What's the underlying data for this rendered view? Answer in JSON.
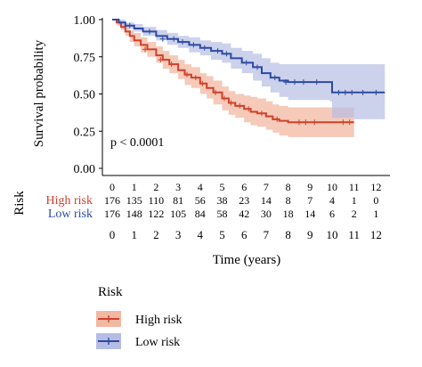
{
  "chart_data": {
    "type": "line",
    "subtype": "kaplan-meier",
    "ylabel": "Survival probability",
    "xlabel": "Time (years)",
    "xlim": [
      0,
      12.4
    ],
    "ylim": [
      0,
      1.0
    ],
    "x_ticks": [
      "0",
      "1",
      "2",
      "3",
      "4",
      "5",
      "6",
      "7",
      "8",
      "9",
      "10",
      "11",
      "12"
    ],
    "y_ticks": [
      "0.00",
      "0.25",
      "0.50",
      "0.75",
      "1.00"
    ],
    "annotation": "p < 0.0001",
    "grid": false,
    "legend": {
      "title": "Risk",
      "placement": "bottom",
      "entries": [
        "High risk",
        "Low risk"
      ]
    },
    "series": [
      {
        "name": "High risk",
        "color": "#d0402a",
        "fill": "#f2b8a2",
        "x": [
          0,
          0.2,
          0.4,
          0.6,
          0.8,
          1.0,
          1.3,
          1.6,
          2.0,
          2.3,
          2.6,
          3.0,
          3.3,
          3.6,
          4.0,
          4.3,
          4.6,
          5.0,
          5.3,
          5.6,
          6.0,
          6.3,
          6.6,
          7.0,
          7.3,
          7.6,
          8.0,
          8.3,
          9.0,
          10.0,
          11.0
        ],
        "y": [
          1.0,
          0.98,
          0.95,
          0.92,
          0.89,
          0.86,
          0.83,
          0.8,
          0.76,
          0.73,
          0.7,
          0.66,
          0.63,
          0.61,
          0.57,
          0.54,
          0.51,
          0.47,
          0.44,
          0.42,
          0.4,
          0.38,
          0.37,
          0.35,
          0.33,
          0.32,
          0.31,
          0.31,
          0.31,
          0.31,
          0.31
        ],
        "lower": [
          1.0,
          0.96,
          0.93,
          0.89,
          0.85,
          0.82,
          0.78,
          0.75,
          0.71,
          0.67,
          0.64,
          0.6,
          0.56,
          0.54,
          0.5,
          0.47,
          0.43,
          0.39,
          0.36,
          0.34,
          0.31,
          0.29,
          0.28,
          0.26,
          0.24,
          0.22,
          0.21,
          0.21,
          0.21,
          0.21,
          0.21
        ],
        "upper": [
          1.0,
          1.0,
          0.98,
          0.96,
          0.93,
          0.91,
          0.88,
          0.85,
          0.82,
          0.79,
          0.76,
          0.73,
          0.7,
          0.68,
          0.64,
          0.62,
          0.59,
          0.55,
          0.52,
          0.5,
          0.49,
          0.48,
          0.47,
          0.45,
          0.43,
          0.42,
          0.41,
          0.41,
          0.41,
          0.41,
          0.41
        ],
        "censor_x": [
          1.5,
          2.2,
          2.7,
          3.4,
          3.8,
          4.1,
          4.7,
          5.1,
          5.4,
          5.8,
          6.2,
          6.8,
          7.5,
          8.5,
          8.8,
          9.2,
          10.5,
          10.8
        ],
        "censor_y": [
          0.8,
          0.73,
          0.7,
          0.63,
          0.61,
          0.57,
          0.51,
          0.47,
          0.44,
          0.42,
          0.4,
          0.37,
          0.33,
          0.31,
          0.31,
          0.31,
          0.31,
          0.31
        ]
      },
      {
        "name": "Low risk",
        "color": "#2c4aa3",
        "fill": "#b6bde4",
        "x": [
          0,
          0.3,
          0.6,
          1.0,
          1.4,
          2.0,
          2.5,
          3.0,
          3.5,
          4.0,
          4.5,
          5.0,
          5.4,
          5.9,
          6.4,
          6.8,
          7.2,
          7.6,
          8.0,
          9.0,
          9.9,
          10.0,
          11.0,
          12.4
        ],
        "y": [
          1.0,
          0.98,
          0.96,
          0.94,
          0.92,
          0.89,
          0.87,
          0.85,
          0.83,
          0.81,
          0.79,
          0.77,
          0.74,
          0.71,
          0.68,
          0.64,
          0.61,
          0.59,
          0.58,
          0.58,
          0.58,
          0.51,
          0.51,
          0.51
        ],
        "lower": [
          1.0,
          0.96,
          0.94,
          0.92,
          0.89,
          0.86,
          0.83,
          0.81,
          0.78,
          0.76,
          0.73,
          0.71,
          0.67,
          0.64,
          0.59,
          0.55,
          0.51,
          0.48,
          0.46,
          0.46,
          0.45,
          0.34,
          0.33,
          0.33
        ],
        "upper": [
          1.0,
          1.0,
          0.98,
          0.97,
          0.95,
          0.93,
          0.91,
          0.89,
          0.88,
          0.86,
          0.85,
          0.84,
          0.81,
          0.79,
          0.77,
          0.74,
          0.71,
          0.7,
          0.7,
          0.7,
          0.7,
          0.7,
          0.7,
          0.7
        ],
        "censor_x": [
          0.8,
          1.7,
          2.3,
          2.8,
          3.2,
          3.7,
          4.2,
          4.8,
          5.2,
          6.1,
          6.6,
          7.4,
          7.9,
          8.3,
          8.7,
          9.3,
          10.3,
          10.6,
          10.9,
          11.4,
          12.0
        ],
        "censor_y": [
          0.96,
          0.92,
          0.87,
          0.87,
          0.85,
          0.83,
          0.81,
          0.79,
          0.77,
          0.71,
          0.68,
          0.61,
          0.58,
          0.58,
          0.58,
          0.58,
          0.51,
          0.51,
          0.51,
          0.51,
          0.51
        ]
      }
    ],
    "risk_table": {
      "title": "Risk",
      "header": [
        "0",
        "1",
        "2",
        "3",
        "4",
        "5",
        "6",
        "7",
        "8",
        "9",
        "10",
        "11",
        "12"
      ],
      "rows": [
        {
          "label": "High risk",
          "color": "#d0402a",
          "values": [
            "176",
            "135",
            "110",
            "81",
            "56",
            "38",
            "23",
            "14",
            "8",
            "7",
            "4",
            "1",
            "0"
          ]
        },
        {
          "label": "Low risk",
          "color": "#2c4aa3",
          "values": [
            "176",
            "148",
            "122",
            "105",
            "84",
            "58",
            "42",
            "30",
            "18",
            "14",
            "6",
            "2",
            "1"
          ]
        }
      ]
    }
  }
}
